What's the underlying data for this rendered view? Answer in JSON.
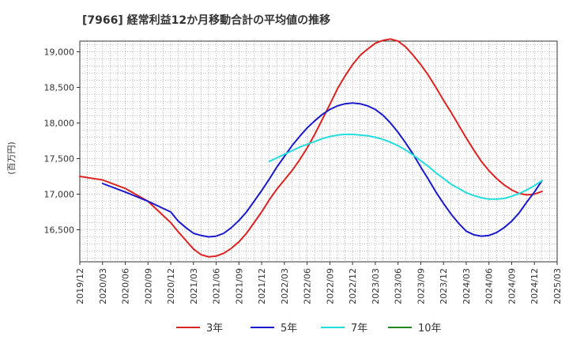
{
  "chart_data": {
    "type": "line",
    "title": "[7966]  経常利益12か月移動合計の平均値の推移",
    "ylabel": "(百万円)",
    "xlabel": "",
    "x_ticks": [
      "2019/12",
      "2020/03",
      "2020/06",
      "2020/09",
      "2020/12",
      "2021/03",
      "2021/06",
      "2021/09",
      "2021/12",
      "2022/03",
      "2022/06",
      "2022/09",
      "2022/12",
      "2023/03",
      "2023/06",
      "2023/09",
      "2023/12",
      "2024/03",
      "2024/06",
      "2024/09",
      "2024/12",
      "2025/03"
    ],
    "y_ticks": [
      16500,
      17000,
      17500,
      18000,
      18500,
      19000
    ],
    "y_tick_labels": [
      "16,500",
      "17,000",
      "17,500",
      "18,000",
      "18,500",
      "19,000"
    ],
    "ylim": [
      16050,
      19150
    ],
    "grid": true,
    "legend_position": "bottom",
    "series": [
      {
        "name": "3年",
        "color": "#dd2222",
        "points": [
          [
            "2019/12",
            17250
          ],
          [
            "2020/03",
            17200
          ],
          [
            "2020/06",
            17080
          ],
          [
            "2020/09",
            16900
          ],
          [
            "2020/12",
            16600
          ],
          [
            "2021/01",
            16470
          ],
          [
            "2021/02",
            16350
          ],
          [
            "2021/03",
            16230
          ],
          [
            "2021/04",
            16150
          ],
          [
            "2021/05",
            16120
          ],
          [
            "2021/06",
            16130
          ],
          [
            "2021/07",
            16170
          ],
          [
            "2021/08",
            16240
          ],
          [
            "2021/09",
            16330
          ],
          [
            "2021/10",
            16450
          ],
          [
            "2021/11",
            16600
          ],
          [
            "2021/12",
            16750
          ],
          [
            "2022/01",
            16920
          ],
          [
            "2022/02",
            17070
          ],
          [
            "2022/03",
            17200
          ],
          [
            "2022/04",
            17330
          ],
          [
            "2022/05",
            17480
          ],
          [
            "2022/06",
            17650
          ],
          [
            "2022/07",
            17840
          ],
          [
            "2022/08",
            18050
          ],
          [
            "2022/09",
            18260
          ],
          [
            "2022/10",
            18480
          ],
          [
            "2022/11",
            18660
          ],
          [
            "2022/12",
            18820
          ],
          [
            "2023/01",
            18950
          ],
          [
            "2023/02",
            19040
          ],
          [
            "2023/03",
            19120
          ],
          [
            "2023/04",
            19160
          ],
          [
            "2023/05",
            19180
          ],
          [
            "2023/06",
            19150
          ],
          [
            "2023/07",
            19070
          ],
          [
            "2023/08",
            18950
          ],
          [
            "2023/09",
            18820
          ],
          [
            "2023/10",
            18670
          ],
          [
            "2023/11",
            18500
          ],
          [
            "2023/12",
            18320
          ],
          [
            "2024/01",
            18150
          ],
          [
            "2024/02",
            17970
          ],
          [
            "2024/03",
            17790
          ],
          [
            "2024/04",
            17620
          ],
          [
            "2024/05",
            17460
          ],
          [
            "2024/06",
            17330
          ],
          [
            "2024/07",
            17220
          ],
          [
            "2024/08",
            17130
          ],
          [
            "2024/09",
            17060
          ],
          [
            "2024/10",
            17010
          ],
          [
            "2024/11",
            16990
          ],
          [
            "2024/12",
            17000
          ],
          [
            "2025/01",
            17040
          ]
        ]
      },
      {
        "name": "5年",
        "color": "#1a1acc",
        "points": [
          [
            "2020/03",
            17150
          ],
          [
            "2020/06",
            17030
          ],
          [
            "2020/09",
            16900
          ],
          [
            "2020/12",
            16750
          ],
          [
            "2021/01",
            16620
          ],
          [
            "2021/02",
            16530
          ],
          [
            "2021/03",
            16450
          ],
          [
            "2021/04",
            16420
          ],
          [
            "2021/05",
            16400
          ],
          [
            "2021/06",
            16410
          ],
          [
            "2021/07",
            16450
          ],
          [
            "2021/08",
            16530
          ],
          [
            "2021/09",
            16630
          ],
          [
            "2021/10",
            16750
          ],
          [
            "2021/11",
            16900
          ],
          [
            "2021/12",
            17050
          ],
          [
            "2022/01",
            17210
          ],
          [
            "2022/02",
            17380
          ],
          [
            "2022/03",
            17530
          ],
          [
            "2022/04",
            17680
          ],
          [
            "2022/05",
            17810
          ],
          [
            "2022/06",
            17930
          ],
          [
            "2022/07",
            18030
          ],
          [
            "2022/08",
            18120
          ],
          [
            "2022/09",
            18190
          ],
          [
            "2022/10",
            18240
          ],
          [
            "2022/11",
            18270
          ],
          [
            "2022/12",
            18280
          ],
          [
            "2023/01",
            18270
          ],
          [
            "2023/02",
            18240
          ],
          [
            "2023/03",
            18190
          ],
          [
            "2023/04",
            18110
          ],
          [
            "2023/05",
            18000
          ],
          [
            "2023/06",
            17870
          ],
          [
            "2023/07",
            17720
          ],
          [
            "2023/08",
            17560
          ],
          [
            "2023/09",
            17380
          ],
          [
            "2023/10",
            17210
          ],
          [
            "2023/11",
            17030
          ],
          [
            "2023/12",
            16870
          ],
          [
            "2024/01",
            16720
          ],
          [
            "2024/02",
            16590
          ],
          [
            "2024/03",
            16480
          ],
          [
            "2024/04",
            16430
          ],
          [
            "2024/05",
            16410
          ],
          [
            "2024/06",
            16420
          ],
          [
            "2024/07",
            16460
          ],
          [
            "2024/08",
            16530
          ],
          [
            "2024/09",
            16620
          ],
          [
            "2024/10",
            16740
          ],
          [
            "2024/11",
            16890
          ],
          [
            "2024/12",
            17030
          ],
          [
            "2025/01",
            17190
          ]
        ]
      },
      {
        "name": "7年",
        "color": "#22dddd",
        "points": [
          [
            "2022/01",
            17460
          ],
          [
            "2022/02",
            17510
          ],
          [
            "2022/03",
            17560
          ],
          [
            "2022/04",
            17610
          ],
          [
            "2022/05",
            17660
          ],
          [
            "2022/06",
            17700
          ],
          [
            "2022/07",
            17740
          ],
          [
            "2022/08",
            17780
          ],
          [
            "2022/09",
            17810
          ],
          [
            "2022/10",
            17830
          ],
          [
            "2022/11",
            17840
          ],
          [
            "2022/12",
            17840
          ],
          [
            "2023/01",
            17830
          ],
          [
            "2023/02",
            17820
          ],
          [
            "2023/03",
            17800
          ],
          [
            "2023/04",
            17770
          ],
          [
            "2023/05",
            17730
          ],
          [
            "2023/06",
            17680
          ],
          [
            "2023/07",
            17620
          ],
          [
            "2023/08",
            17550
          ],
          [
            "2023/09",
            17470
          ],
          [
            "2023/10",
            17390
          ],
          [
            "2023/11",
            17300
          ],
          [
            "2023/12",
            17220
          ],
          [
            "2024/01",
            17140
          ],
          [
            "2024/02",
            17080
          ],
          [
            "2024/03",
            17020
          ],
          [
            "2024/04",
            16980
          ],
          [
            "2024/05",
            16950
          ],
          [
            "2024/06",
            16930
          ],
          [
            "2024/07",
            16930
          ],
          [
            "2024/08",
            16940
          ],
          [
            "2024/09",
            16970
          ],
          [
            "2024/10",
            17010
          ],
          [
            "2024/11",
            17060
          ],
          [
            "2024/12",
            17120
          ],
          [
            "2025/01",
            17190
          ]
        ]
      },
      {
        "name": "10年",
        "color": "#228822",
        "points": []
      }
    ]
  }
}
